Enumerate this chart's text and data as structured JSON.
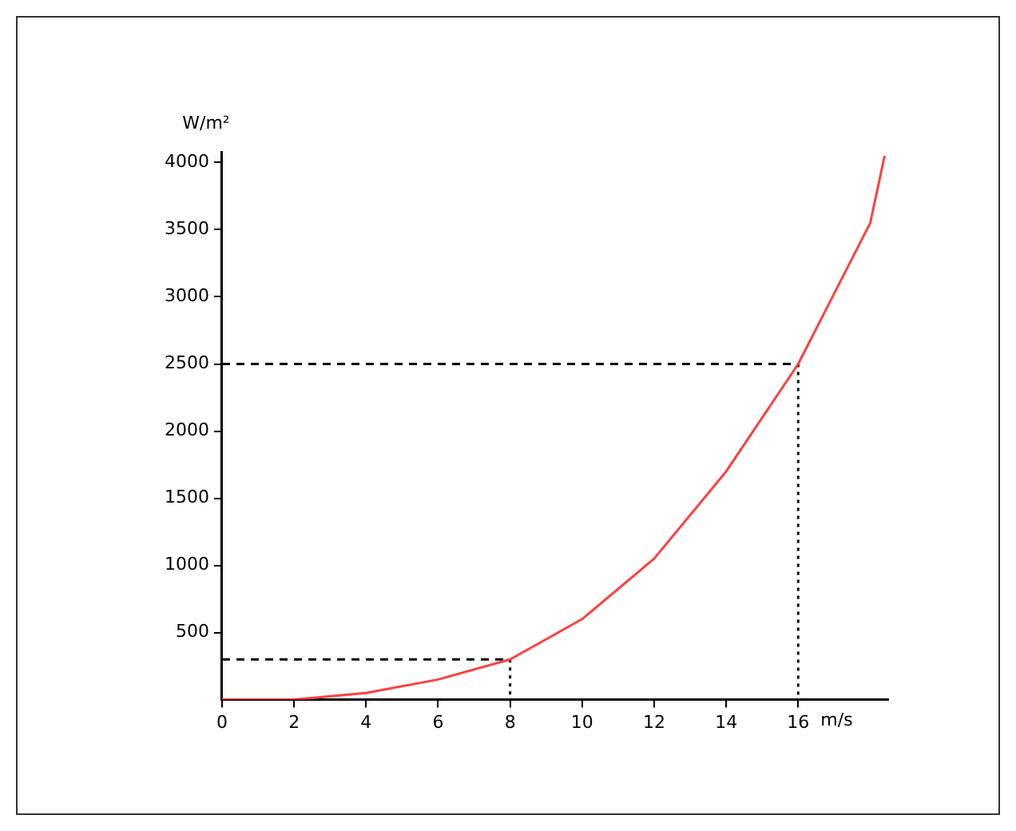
{
  "chart_data": {
    "type": "line",
    "xlabel": "m/s",
    "ylabel": "W/m²",
    "grid": false,
    "legend": false,
    "marker": "none",
    "xlim": [
      0,
      18.5
    ],
    "ylim": [
      0,
      4080
    ],
    "xticks": [
      0,
      2,
      4,
      6,
      8,
      10,
      12,
      14,
      16
    ],
    "yticks": [
      500,
      1000,
      1500,
      2000,
      2500,
      3000,
      3500,
      4000
    ],
    "series": [
      {
        "color": "#ff4040",
        "line_style": "solid",
        "x": [
          0,
          2,
          4,
          6,
          8,
          10,
          12,
          14,
          16,
          18,
          18.4
        ],
        "values": [
          0,
          0,
          50,
          150,
          300,
          600,
          1050,
          1700,
          2500,
          3550,
          4050
        ]
      },
      {
        "color": "#000000",
        "line_style": "dashed",
        "x": [
          0,
          8
        ],
        "values": [
          300,
          300
        ]
      },
      {
        "color": "#000000",
        "line_style": "dotted",
        "x": [
          8,
          8
        ],
        "values": [
          300,
          0
        ]
      },
      {
        "color": "#000000",
        "line_style": "dashed",
        "x": [
          0,
          16
        ],
        "values": [
          2500,
          2500
        ]
      },
      {
        "color": "#000000",
        "line_style": "dotted",
        "x": [
          16,
          16
        ],
        "values": [
          2500,
          0
        ]
      }
    ]
  }
}
